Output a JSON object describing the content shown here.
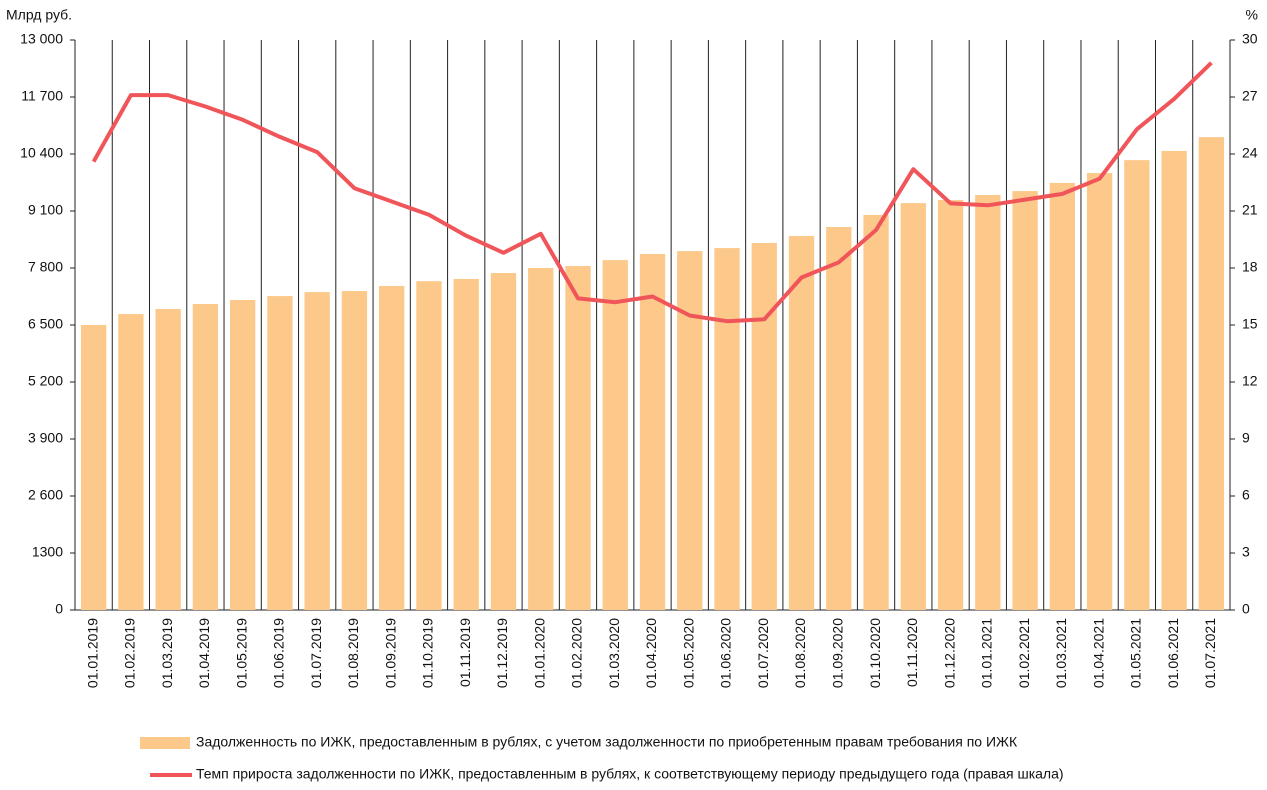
{
  "chart_data": {
    "type": "bar",
    "y_label": "Млрд руб.",
    "y2_label": "%",
    "categories": [
      "01.01.2019",
      "01.02.2019",
      "01.03.2019",
      "01.04.2019",
      "01.05.2019",
      "01.06.2019",
      "01.07.2019",
      "01.08.2019",
      "01.09.2019",
      "01.10.2019",
      "01.11.2019",
      "01.12.2019",
      "01.01.2020",
      "01.02.2020",
      "01.03.2020",
      "01.04.2020",
      "01.05.2020",
      "01.06.2020",
      "01.07.2020",
      "01.08.2020",
      "01.09.2020",
      "01.10.2020",
      "01.11.2020",
      "01.12.2020",
      "01.01.2021",
      "01.02.2021",
      "01.03.2021",
      "01.04.2021",
      "01.05.2021",
      "01.06.2021",
      "01.07.2021"
    ],
    "series": [
      {
        "name": "Задолженность по ИЖК, предоставленным в рублях, с учетом задолженности по приобретенным правам требования по ИЖК",
        "type": "bar",
        "color": "#fdc98a",
        "values": [
          6500,
          6750,
          6865,
          6980,
          7070,
          7160,
          7250,
          7275,
          7390,
          7500,
          7550,
          7685,
          7800,
          7845,
          7980,
          8120,
          8185,
          8255,
          8370,
          8530,
          8735,
          9010,
          9280,
          9350,
          9465,
          9555,
          9740,
          9965,
          10260,
          10470,
          10785
        ]
      },
      {
        "name": "Темп прироста задолженности по ИЖК, предоставленным в рублях, к соответствующему периоду предыдущего года (правая шкала)",
        "type": "line",
        "axis": "y2",
        "color": "#f0555a",
        "values": [
          23.6,
          27.1,
          27.1,
          26.5,
          25.8,
          24.9,
          24.1,
          22.2,
          21.5,
          20.8,
          19.7,
          18.8,
          19.8,
          16.4,
          16.2,
          16.5,
          15.5,
          15.2,
          15.3,
          17.5,
          18.3,
          20.0,
          23.2,
          21.4,
          21.3,
          21.6,
          21.9,
          22.7,
          25.3,
          26.9,
          28.8
        ]
      }
    ],
    "ylim": [
      0,
      13000
    ],
    "yticks": [
      0,
      1300,
      {
        "value": 2600,
        "label": "2 600"
      },
      {
        "value": 3900,
        "label": "3 900"
      },
      {
        "value": 5200,
        "label": "5 200"
      },
      {
        "value": 6500,
        "label": "6 500"
      },
      {
        "value": 7800,
        "label": "7 800"
      },
      {
        "value": 9100,
        "label": "9 100"
      },
      {
        "value": 10400,
        "label": "10 400"
      },
      {
        "value": 11700,
        "label": "11 700"
      },
      {
        "value": 13000,
        "label": "13 000"
      }
    ],
    "y2lim": [
      0,
      30
    ],
    "y2ticks": [
      0,
      3,
      6,
      9,
      12,
      15,
      18,
      21,
      24,
      27,
      30
    ]
  }
}
